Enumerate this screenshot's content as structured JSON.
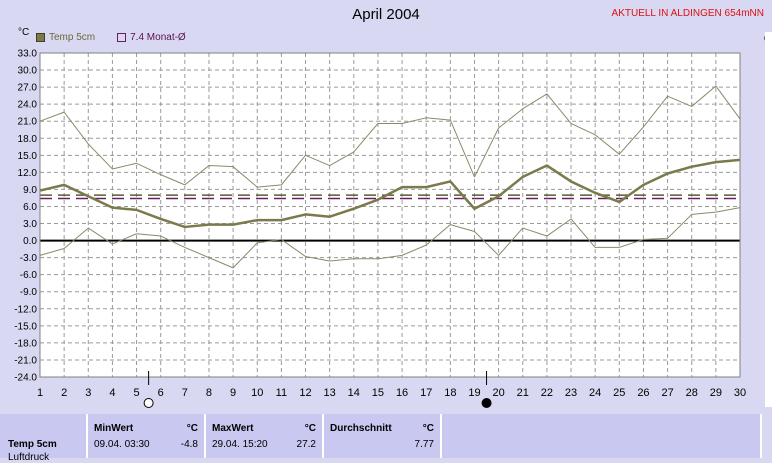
{
  "chart_data": {
    "type": "line",
    "title": "April 2004",
    "ylabel": "°C",
    "station_label": "AKTUELL IN ALDINGEN 654mNN",
    "ylim": [
      -24,
      33
    ],
    "yticks": [
      "33.0",
      "30.0",
      "27.0",
      "24.0",
      "21.0",
      "18.0",
      "15.0",
      "12.0",
      "9.0",
      "6.0",
      "3.0",
      "0.0",
      "-3.0",
      "-6.0",
      "-9.0",
      "-12.0",
      "-15.0",
      "-18.0",
      "-21.0",
      "-24.0"
    ],
    "x": [
      1,
      2,
      3,
      4,
      5,
      6,
      7,
      8,
      9,
      10,
      11,
      12,
      13,
      14,
      15,
      16,
      17,
      18,
      19,
      20,
      21,
      22,
      23,
      24,
      25,
      26,
      27,
      28,
      29,
      30
    ],
    "series": [
      {
        "name": "Temp 5cm",
        "color": "#7a7a4a",
        "role": "mean",
        "values": [
          8.8,
          9.8,
          7.8,
          5.8,
          5.4,
          3.8,
          2.4,
          2.8,
          2.8,
          3.6,
          3.6,
          4.6,
          4.2,
          5.6,
          7.2,
          9.4,
          9.4,
          10.4,
          5.6,
          7.8,
          11.2,
          13.2,
          10.4,
          8.4,
          6.8,
          9.8,
          11.8,
          13.0,
          13.8,
          14.2
        ]
      },
      {
        "name": "",
        "color": "#8a8a6a",
        "role": "max",
        "values": [
          21.0,
          22.6,
          17.0,
          12.6,
          13.6,
          11.6,
          9.8,
          13.2,
          13.0,
          9.4,
          9.8,
          15.0,
          13.2,
          15.6,
          20.6,
          20.6,
          21.6,
          21.2,
          11.2,
          19.8,
          23.2,
          25.8,
          20.6,
          18.6,
          15.2,
          20.0,
          25.4,
          23.6,
          27.2,
          21.4
        ]
      },
      {
        "name": "",
        "color": "#8a8a6a",
        "role": "min",
        "values": [
          -2.6,
          -1.4,
          2.2,
          -0.6,
          1.2,
          0.8,
          -1.2,
          -3.0,
          -4.8,
          -0.4,
          0.2,
          -2.8,
          -3.6,
          -3.2,
          -3.2,
          -2.6,
          -0.8,
          2.8,
          1.6,
          -2.6,
          2.2,
          0.8,
          3.8,
          -1.2,
          -1.2,
          0.2,
          0.4,
          4.6,
          5.0,
          5.8
        ]
      }
    ],
    "reference_lines": [
      {
        "label": "7.4 Monat-Ø",
        "value": 7.4,
        "color": "#6a2060",
        "style": "dashed"
      },
      {
        "value": 8.0,
        "color": "#5a5a30",
        "style": "dashed"
      },
      {
        "value": 0.0,
        "color": "#000000",
        "style": "solid"
      }
    ],
    "moon_phases": [
      {
        "day": 5.5,
        "phase": "full"
      },
      {
        "day": 19.5,
        "phase": "new"
      }
    ],
    "grid": true
  },
  "edge_char": "d",
  "stats": {
    "row_label": "Temp 5cm",
    "row_label_cut": "Luftdruck",
    "min_header": "MinWert",
    "min_unit": "°C",
    "min_time": "09.04.  03:30",
    "min_value": "-4.8",
    "max_header": "MaxWert",
    "max_unit": "°C",
    "max_time": "29.04.  15:20",
    "max_value": "27.2",
    "avg_header": "Durchschnitt",
    "avg_unit": "°C",
    "avg_value": "7.77"
  }
}
